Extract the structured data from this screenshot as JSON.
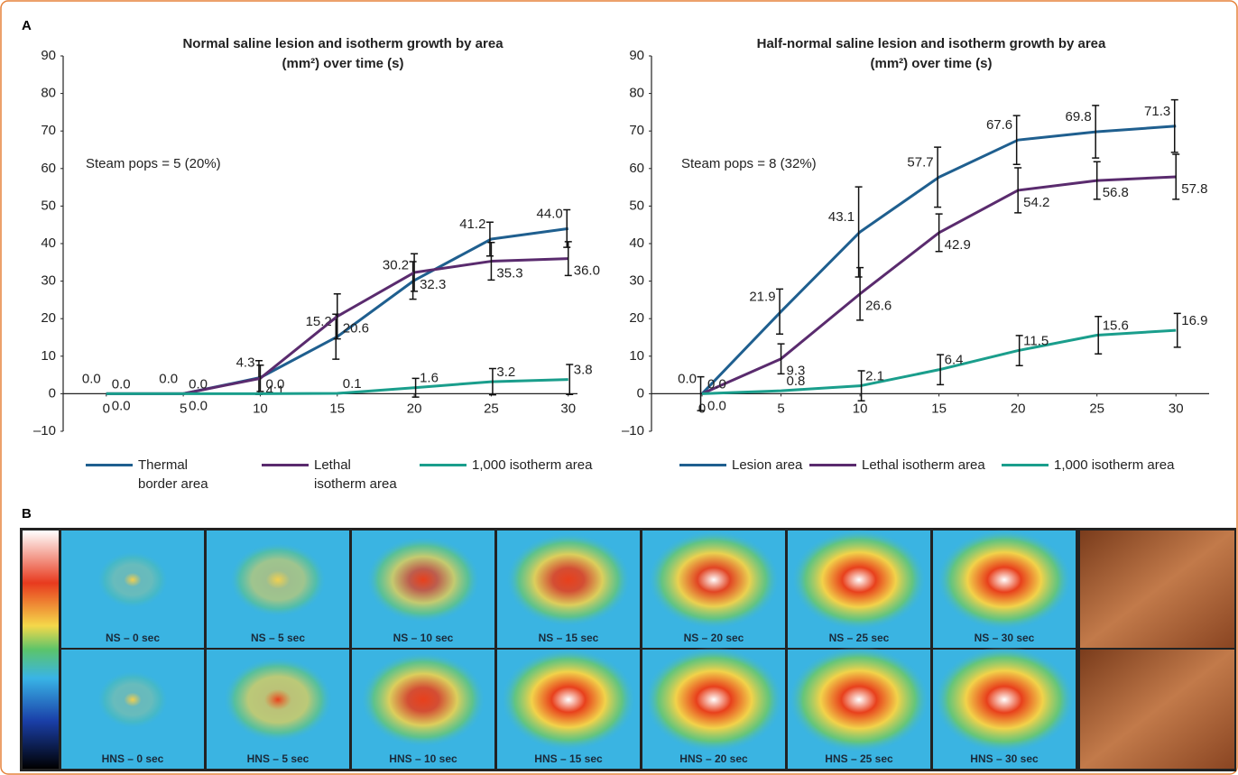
{
  "chart_data": [
    {
      "type": "line",
      "title": "Normal saline lesion and isotherm growth by area (mm²) over time (s)",
      "annotation": "Steam pops = 5 (20%)",
      "x": [
        0,
        5,
        10,
        15,
        20,
        25,
        30
      ],
      "xlim": [
        -2.8,
        30.6
      ],
      "xticks": [
        0,
        5,
        10,
        15,
        20,
        25,
        30
      ],
      "ylim": [
        -10,
        90
      ],
      "yticks": [
        {
          "value": -10,
          "label": "–10"
        },
        0,
        10,
        20,
        30,
        40,
        50,
        60,
        70,
        80,
        90
      ],
      "series": [
        {
          "name": "Thermal border area",
          "color": "#1f5f8f",
          "values": [
            0,
            0,
            4.3,
            15.2,
            30.2,
            41.2,
            44.0
          ],
          "value_labels": [
            "0.0",
            "0.0",
            "4.3",
            "15.2",
            "30.2",
            "41.2",
            "44.0"
          ],
          "errors": [
            null,
            null,
            4.5,
            6,
            5,
            4.5,
            5
          ]
        },
        {
          "name": "Lethal isotherm area",
          "color": "#5a2b6e",
          "values": [
            0,
            0,
            4.1,
            20.6,
            32.3,
            35.3,
            36.0
          ],
          "value_labels": [
            "0.0",
            "0.0",
            "4.1",
            "20.6",
            "32.3",
            "35.3",
            "36.0"
          ],
          "errors": [
            null,
            null,
            3.5,
            6,
            5,
            5,
            4.5
          ]
        },
        {
          "name": "1,000 isotherm area",
          "color": "#1a9e8c",
          "values": [
            0,
            0,
            0,
            0.1,
            1.6,
            3.2,
            3.8
          ],
          "value_labels": [
            "0.0",
            "0.0",
            "0.0",
            "0.1",
            "1.6",
            "3.2",
            "3.8"
          ],
          "errors": [
            null,
            null,
            null,
            null,
            2.5,
            3.5,
            4
          ]
        }
      ]
    },
    {
      "type": "line",
      "title": "Half-normal saline lesion and isotherm growth by area (mm²) over time (s)",
      "annotation": "Steam pops = 8 (32%)",
      "x": [
        0,
        5,
        10,
        15,
        20,
        25,
        30
      ],
      "xlim": [
        -3.2,
        32.1
      ],
      "xticks": [
        0,
        5,
        10,
        15,
        20,
        25,
        30
      ],
      "ylim": [
        -10,
        90
      ],
      "yticks": [
        {
          "value": -10,
          "label": "–10"
        },
        0,
        10,
        20,
        30,
        40,
        50,
        60,
        70,
        80,
        90
      ],
      "series": [
        {
          "name": "Lesion area",
          "color": "#1f5f8f",
          "values": [
            0,
            21.9,
            43.1,
            57.7,
            67.6,
            69.8,
            71.3
          ],
          "value_labels": [
            "0.0",
            "21.9",
            "43.1",
            "57.7",
            "67.6",
            "69.8",
            "71.3"
          ],
          "errors": [
            4.5,
            6,
            12,
            8,
            6.5,
            7,
            7
          ]
        },
        {
          "name": "Lethal isotherm area",
          "color": "#5a2b6e",
          "values": [
            0,
            9.3,
            26.6,
            42.9,
            54.2,
            56.8,
            57.8
          ],
          "value_labels": [
            "0.0",
            "9.3",
            "26.6",
            "42.9",
            "54.2",
            "56.8",
            "57.8"
          ],
          "errors": [
            null,
            4,
            7,
            5,
            6,
            5,
            6
          ]
        },
        {
          "name": "1,000 isotherm area",
          "color": "#1a9e8c",
          "values": [
            0,
            0.8,
            2.1,
            6.4,
            11.5,
            15.6,
            16.9
          ],
          "value_labels": [
            "0.0",
            "0.8",
            "2.1",
            "6.4",
            "11.5",
            "15.6",
            "16.9"
          ],
          "errors": [
            null,
            null,
            4,
            4,
            4,
            5,
            4.5
          ]
        }
      ]
    }
  ],
  "panels": {
    "a_label": "A",
    "b_label": "B",
    "thermal_labels": [
      [
        "NS – 0 sec",
        "NS – 5 sec",
        "NS – 10 sec",
        "NS – 15 sec",
        "NS – 20 sec",
        "NS – 25 sec",
        "NS – 30 sec"
      ],
      [
        "HNS – 0 sec",
        "HNS – 5 sec",
        "HNS – 10 sec",
        "HNS – 15 sec",
        "HNS – 20 sec",
        "HNS – 25 sec",
        "HNS – 30 sec"
      ]
    ]
  }
}
